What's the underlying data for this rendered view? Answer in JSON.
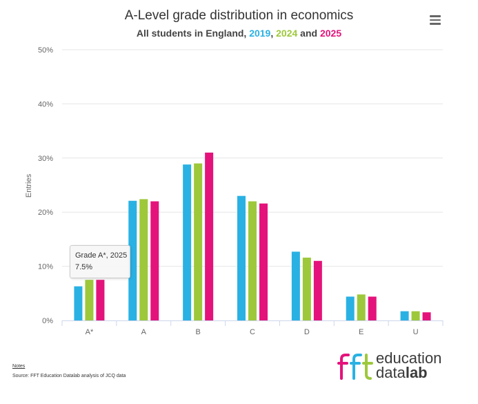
{
  "header": {
    "title": "A-Level grade distribution in economics",
    "subtitle_prefix": "All students in England, ",
    "year1": "2019",
    "sep1": ", ",
    "year2": "2024",
    "sep2": " and ",
    "year3": "2025"
  },
  "colors": {
    "s2019": "#2ab1e3",
    "s2024": "#9dc83b",
    "s2025": "#e4137b"
  },
  "chart_data": {
    "type": "bar",
    "title": "A-Level grade distribution in economics",
    "subtitle": "All students in England, 2019, 2024 and 2025",
    "xlabel": "",
    "ylabel": "Entries",
    "ylim": [
      0,
      50
    ],
    "yticks": [
      0,
      10,
      20,
      30,
      40,
      50
    ],
    "ytick_labels": [
      "0%",
      "10%",
      "20%",
      "30%",
      "40%",
      "50%"
    ],
    "categories": [
      "A*",
      "A",
      "B",
      "C",
      "D",
      "E",
      "U"
    ],
    "series": [
      {
        "name": "2019",
        "color": "#2ab1e3",
        "values": [
          6.3,
          22.1,
          28.8,
          23.0,
          12.7,
          4.4,
          1.7
        ]
      },
      {
        "name": "2024",
        "color": "#9dc83b",
        "values": [
          7.5,
          22.4,
          29.0,
          22.0,
          11.6,
          4.8,
          1.7
        ]
      },
      {
        "name": "2025",
        "color": "#e4137b",
        "values": [
          7.5,
          22.0,
          31.0,
          21.6,
          11.0,
          4.4,
          1.5
        ]
      }
    ],
    "grid": true,
    "legend": "in-subtitle"
  },
  "tooltip": {
    "line1": "Grade A*, 2025",
    "line2": "7.5%"
  },
  "footer": {
    "notes": "Notes",
    "source": "Source: FFT Education Datalab analysis of JCQ data"
  },
  "logo": {
    "mark": "fft",
    "word1": "education",
    "word2a": "data",
    "word2b": "lab"
  },
  "menu": {
    "icon": "hamburger-menu-icon"
  }
}
